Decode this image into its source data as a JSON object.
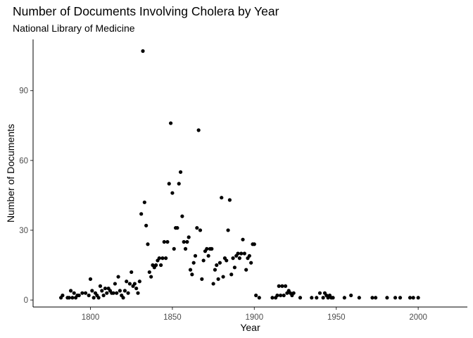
{
  "chart_data": {
    "type": "scatter",
    "title": "Number of Documents Involving Cholera by Year",
    "subtitle": "National Library of Medicine",
    "xlabel": "Year",
    "ylabel": "Number of Documents",
    "xlim": [
      1765,
      2030
    ],
    "ylim": [
      -3,
      112
    ],
    "xticks": [
      1800,
      1850,
      1900,
      1950,
      2000
    ],
    "yticks": [
      0,
      30,
      60,
      90
    ],
    "grid": false,
    "point_color": "#000000",
    "points": [
      [
        1782,
        1
      ],
      [
        1783,
        2
      ],
      [
        1786,
        1
      ],
      [
        1787,
        1
      ],
      [
        1788,
        4
      ],
      [
        1789,
        1
      ],
      [
        1790,
        3
      ],
      [
        1791,
        1
      ],
      [
        1792,
        2
      ],
      [
        1793,
        2
      ],
      [
        1795,
        3
      ],
      [
        1797,
        3
      ],
      [
        1799,
        2
      ],
      [
        1800,
        9
      ],
      [
        1801,
        4
      ],
      [
        1802,
        1
      ],
      [
        1803,
        3
      ],
      [
        1804,
        2
      ],
      [
        1805,
        1
      ],
      [
        1806,
        6
      ],
      [
        1807,
        4
      ],
      [
        1808,
        2
      ],
      [
        1809,
        5
      ],
      [
        1810,
        3
      ],
      [
        1811,
        5
      ],
      [
        1812,
        4
      ],
      [
        1813,
        3
      ],
      [
        1814,
        3
      ],
      [
        1815,
        7
      ],
      [
        1816,
        3
      ],
      [
        1817,
        10
      ],
      [
        1818,
        4
      ],
      [
        1819,
        2
      ],
      [
        1820,
        1
      ],
      [
        1821,
        4
      ],
      [
        1822,
        8
      ],
      [
        1823,
        3
      ],
      [
        1824,
        7
      ],
      [
        1825,
        12
      ],
      [
        1826,
        6
      ],
      [
        1827,
        7
      ],
      [
        1828,
        5
      ],
      [
        1829,
        3
      ],
      [
        1830,
        8
      ],
      [
        1831,
        37
      ],
      [
        1832,
        107
      ],
      [
        1833,
        42
      ],
      [
        1834,
        32
      ],
      [
        1835,
        24
      ],
      [
        1836,
        12
      ],
      [
        1837,
        10
      ],
      [
        1838,
        15
      ],
      [
        1839,
        14
      ],
      [
        1840,
        15
      ],
      [
        1841,
        17
      ],
      [
        1842,
        18
      ],
      [
        1843,
        15
      ],
      [
        1844,
        18
      ],
      [
        1845,
        25
      ],
      [
        1846,
        18
      ],
      [
        1847,
        25
      ],
      [
        1848,
        50
      ],
      [
        1849,
        76
      ],
      [
        1850,
        46
      ],
      [
        1851,
        22
      ],
      [
        1852,
        31
      ],
      [
        1853,
        31
      ],
      [
        1854,
        50
      ],
      [
        1855,
        55
      ],
      [
        1856,
        36
      ],
      [
        1857,
        25
      ],
      [
        1858,
        22
      ],
      [
        1859,
        25
      ],
      [
        1860,
        27
      ],
      [
        1861,
        13
      ],
      [
        1862,
        11
      ],
      [
        1863,
        16
      ],
      [
        1864,
        19
      ],
      [
        1865,
        31
      ],
      [
        1866,
        73
      ],
      [
        1867,
        30
      ],
      [
        1868,
        9
      ],
      [
        1869,
        17
      ],
      [
        1870,
        21
      ],
      [
        1871,
        22
      ],
      [
        1872,
        19
      ],
      [
        1873,
        22
      ],
      [
        1874,
        22
      ],
      [
        1875,
        7
      ],
      [
        1876,
        13
      ],
      [
        1877,
        15
      ],
      [
        1878,
        9
      ],
      [
        1879,
        16
      ],
      [
        1880,
        44
      ],
      [
        1881,
        10
      ],
      [
        1882,
        18
      ],
      [
        1883,
        17
      ],
      [
        1884,
        30
      ],
      [
        1885,
        43
      ],
      [
        1886,
        11
      ],
      [
        1887,
        18
      ],
      [
        1888,
        14
      ],
      [
        1889,
        19
      ],
      [
        1890,
        20
      ],
      [
        1891,
        18
      ],
      [
        1892,
        20
      ],
      [
        1893,
        26
      ],
      [
        1894,
        20
      ],
      [
        1895,
        13
      ],
      [
        1896,
        18
      ],
      [
        1897,
        19
      ],
      [
        1898,
        16
      ],
      [
        1899,
        24
      ],
      [
        1900,
        24
      ],
      [
        1901,
        2
      ],
      [
        1903,
        1
      ],
      [
        1911,
        1
      ],
      [
        1913,
        1
      ],
      [
        1914,
        2
      ],
      [
        1915,
        6
      ],
      [
        1916,
        2
      ],
      [
        1917,
        6
      ],
      [
        1918,
        2
      ],
      [
        1919,
        6
      ],
      [
        1920,
        3
      ],
      [
        1921,
        4
      ],
      [
        1922,
        3
      ],
      [
        1923,
        2
      ],
      [
        1924,
        3
      ],
      [
        1928,
        1
      ],
      [
        1935,
        1
      ],
      [
        1938,
        1
      ],
      [
        1940,
        3
      ],
      [
        1942,
        1
      ],
      [
        1943,
        3
      ],
      [
        1944,
        2
      ],
      [
        1945,
        1
      ],
      [
        1946,
        2
      ],
      [
        1947,
        1
      ],
      [
        1948,
        1
      ],
      [
        1955,
        1
      ],
      [
        1959,
        2
      ],
      [
        1964,
        1
      ],
      [
        1972,
        1
      ],
      [
        1974,
        1
      ],
      [
        1981,
        1
      ],
      [
        1986,
        1
      ],
      [
        1989,
        1
      ],
      [
        1995,
        1
      ],
      [
        1997,
        1
      ],
      [
        2000,
        1
      ]
    ]
  }
}
